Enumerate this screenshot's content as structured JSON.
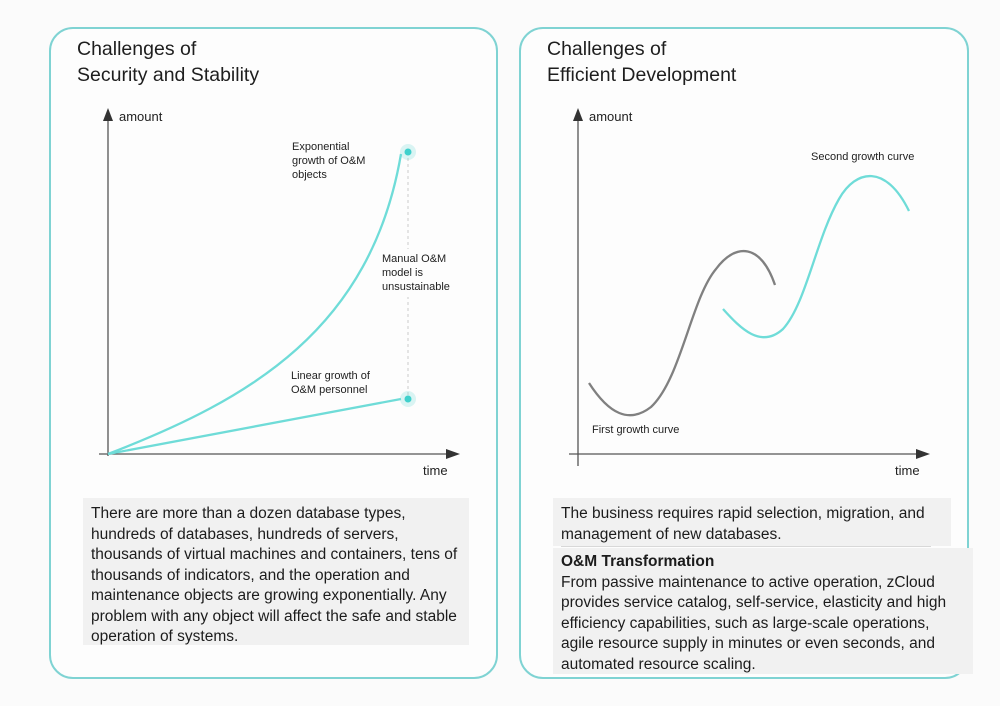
{
  "left": {
    "title_line1": "Challenges of",
    "title_line2": "Security and Stability",
    "y_axis_label": "amount",
    "x_axis_label": "time",
    "annotation_exponential": [
      "Exponential",
      "growth of O&M",
      "objects"
    ],
    "annotation_manual": [
      "Manual O&M",
      "model is",
      "unsustainable"
    ],
    "annotation_linear": [
      "Linear growth of",
      "O&M personnel"
    ],
    "body_text": "There are more than a dozen database types, hundreds of databases, hundreds of servers, thousands of virtual machines and containers, tens of thousands of indicators, and the operation and maintenance objects are growing exponentially. Any problem with any object will affect the safe and stable operation of systems."
  },
  "right": {
    "title_line1": "Challenges of",
    "title_line2": "Efficient Development",
    "y_axis_label": "amount",
    "x_axis_label": "time",
    "curve1_label": "First growth curve",
    "curve2_label": "Second growth curve",
    "body_text_1": "The business requires rapid selection, migration, and management of new databases.",
    "subheading": "O&M Transformation",
    "body_text_2": "From passive maintenance to active operation, zCloud provides service catalog, self-service, elasticity and high efficiency capabilities, such as large-scale operations, agile resource supply in minutes or even seconds, and automated resource scaling."
  },
  "colors": {
    "border": "#7fd3d3",
    "teal_curve": "#6fdcd8",
    "gray_curve": "#808080",
    "axis": "#555555"
  }
}
